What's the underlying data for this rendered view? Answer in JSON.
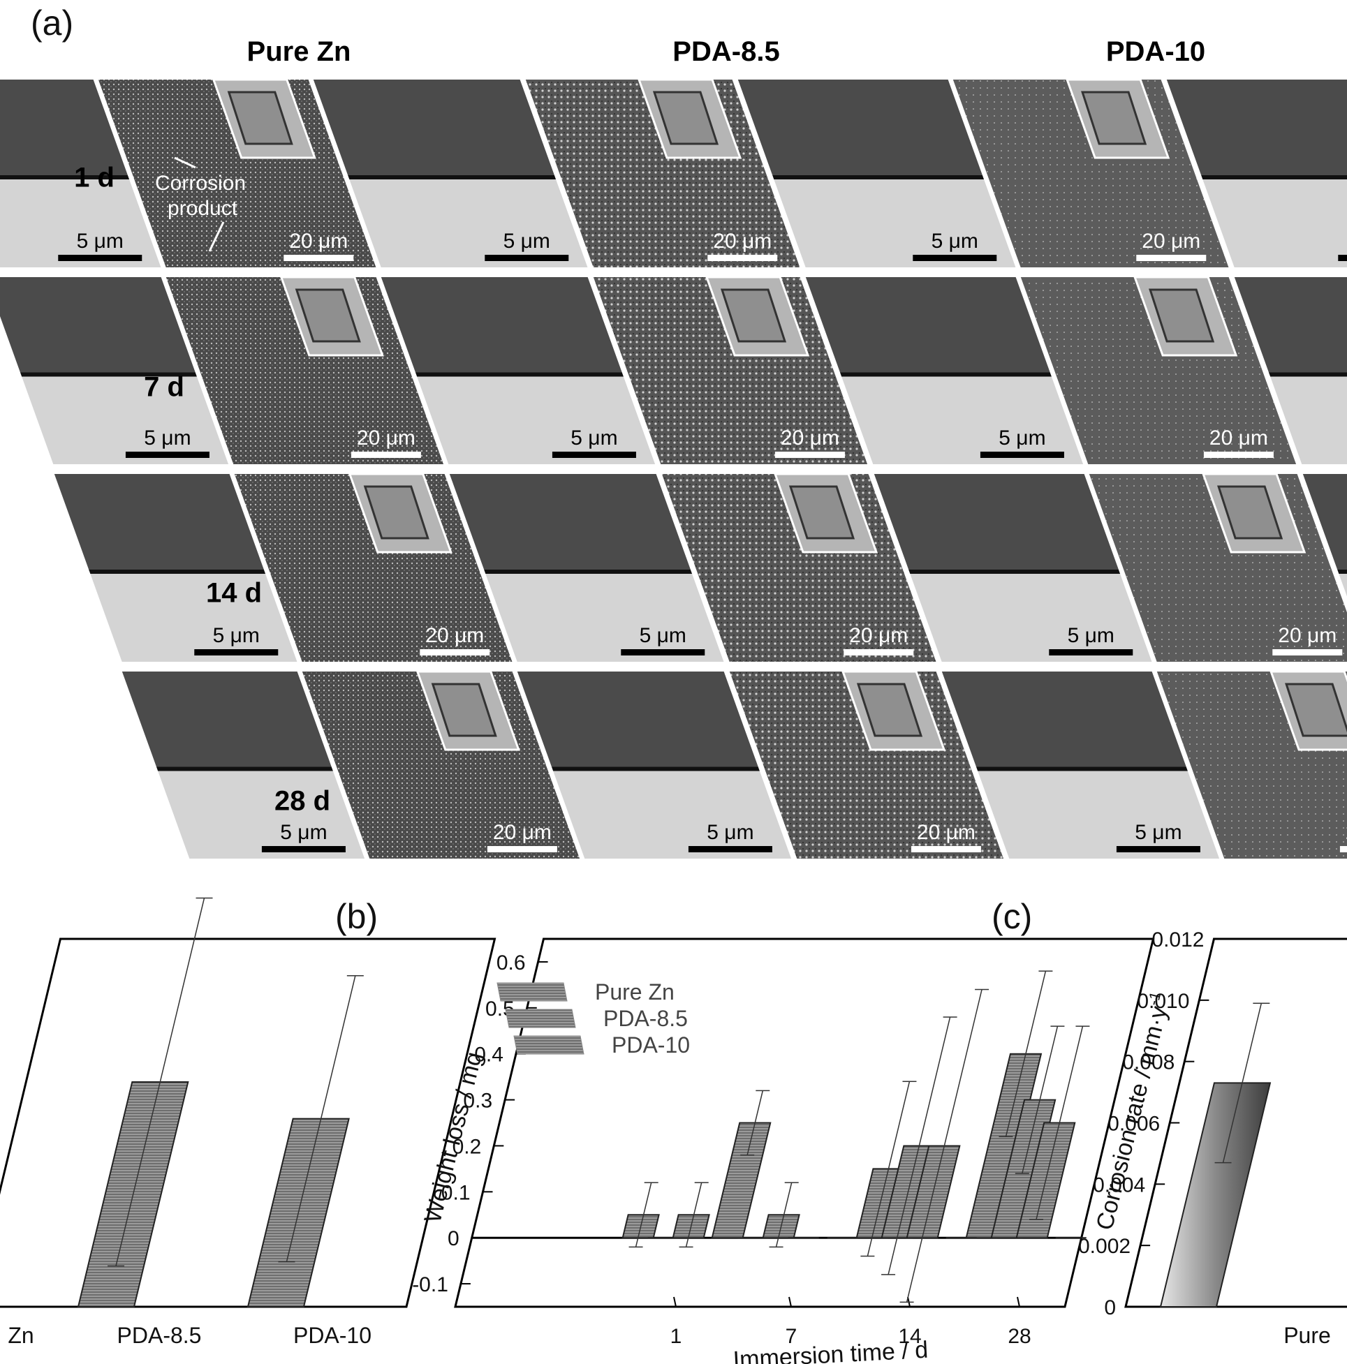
{
  "figure": {
    "panel_a_label": "(a)",
    "panel_b_label": "(b)",
    "panel_c_label": "(c)",
    "columns": [
      "Pure Zn",
      "PDA-8.5",
      "PDA-10"
    ],
    "rows": [
      "1 d",
      "7 d",
      "14 d",
      "28 d"
    ],
    "scale_bars": {
      "surface": "20 μm",
      "cross_section": "5 μm"
    },
    "annotations": {
      "corrosion_product": "Corrosion product"
    },
    "colors": {
      "image_dark": "#3a3a3a",
      "image_light": "#d8d8d8",
      "bar_fill": "#8d8d8d"
    }
  },
  "chart_data": [
    {
      "panel": "(b)",
      "type": "bar",
      "xlabel": "Immersion time / d",
      "ylabel": "Weight loss / mg",
      "categories": [
        "1",
        "7",
        "14",
        "28"
      ],
      "yticks": [
        "-0.1",
        "0",
        "0.1",
        "0.2",
        "0.3",
        "0.4",
        "0.5",
        "0.6"
      ],
      "ylim": [
        -0.15,
        0.65
      ],
      "legend_position": "top-left",
      "series": [
        {
          "name": "Pure Zn",
          "values": [
            0.05,
            0.0,
            0.15,
            0.4
          ],
          "errors": [
            0.07,
            0.0,
            0.19,
            0.18
          ]
        },
        {
          "name": "PDA-8.5",
          "values": [
            0.0,
            0.05,
            0.2,
            0.3
          ],
          "errors": [
            0.0,
            0.07,
            0.28,
            0.16
          ]
        },
        {
          "name": "PDA-10",
          "values": [
            0.05,
            0.0,
            0.2,
            0.25
          ],
          "errors": [
            0.07,
            0.0,
            0.34,
            0.21
          ]
        },
        {
          "name": "",
          "values": [
            0.25,
            0.0,
            0.0,
            0.0
          ],
          "errors": [
            0.07,
            0.0,
            0.0,
            0.0
          ]
        }
      ]
    },
    {
      "panel": "(c)",
      "type": "bar",
      "ylabel": "Corrosion rate / mm·y",
      "ylabel_sup": "-1",
      "categories": [
        "Pure"
      ],
      "yticks": [
        "0",
        "0.002",
        "0.004",
        "0.006",
        "0.008",
        "0.010",
        "0.012"
      ],
      "ylim": [
        0,
        0.012
      ],
      "values": [
        0.0073
      ],
      "errors": [
        0.0026
      ]
    },
    {
      "panel": "left",
      "type": "bar",
      "categories": [
        "Zn",
        "PDA-8.5",
        "PDA-10"
      ],
      "values": [
        null,
        0.55,
        0.46
      ],
      "errors": [
        null,
        0.45,
        0.35
      ]
    }
  ]
}
